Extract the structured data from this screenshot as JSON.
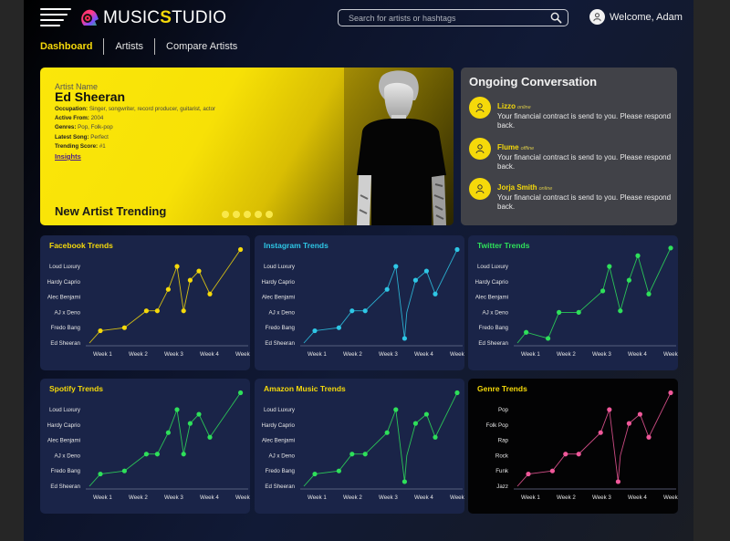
{
  "app": {
    "logo_part1": "MUSIC",
    "logo_part2": "S",
    "logo_part3": "TUDIO"
  },
  "header": {
    "search_placeholder": "Search for artists or hashtags",
    "welcome": "Welcome, Adam"
  },
  "nav": {
    "items": [
      {
        "label": "Dashboard",
        "active": true
      },
      {
        "label": "Artists",
        "active": false
      },
      {
        "label": "Compare Artists",
        "active": false
      }
    ]
  },
  "hero": {
    "label": "Artist Name",
    "name": "Ed Sheeran",
    "occupation_label": "Occupation:",
    "occupation": "Singer, songwriter, record producer, guitarist, actor",
    "active_label": "Active From:",
    "active": "2004",
    "genres_label": "Genres:",
    "genres": "Pop, Folk-pop",
    "song_label": "Latest Song:",
    "song": "Perfect",
    "score_label": "Trending Score:",
    "score": "#1",
    "insights": "Insights",
    "trend_title": "New Artist Trending",
    "carousel_dots": 5
  },
  "conversation": {
    "title": "Ongoing Conversation",
    "messages": [
      {
        "name": "Lizzo",
        "status": "online",
        "text": "Your financial contract is send to you. Please respond back."
      },
      {
        "name": "Flume",
        "status": "offline",
        "text": "Your financial contract is send to you. Please respond back."
      },
      {
        "name": "Jorja Smith",
        "status": "online",
        "text": "Your financial contract is send to you. Please respond back."
      }
    ]
  },
  "colors": {
    "accent_yellow": "#f5d90a",
    "facebook": "#f5d90a",
    "instagram": "#2ec7e6",
    "twitter": "#2ee05a",
    "spotify": "#2ee05a",
    "amazon": "#2ee05a",
    "genre": "#f0589a"
  },
  "chart_data": [
    {
      "type": "line",
      "title": "Facebook Trends",
      "categories": [
        "Week 1",
        "Week 2",
        "Week 3",
        "Week 4",
        "Week 5"
      ],
      "y_tick_labels": [
        "Ed Sheeran",
        "Fredo Bang",
        "AJ x Deno",
        "Alec Benjami",
        "Hardy Caprio",
        "Loud Luxury"
      ],
      "x": [
        0.0,
        0.5,
        1.6,
        2.6,
        3.1,
        3.6,
        4.0,
        4.3,
        4.6,
        5.0,
        5.5,
        6.9
      ],
      "values": [
        0.0,
        0.8,
        1.0,
        2.1,
        2.1,
        3.5,
        5.0,
        2.1,
        4.1,
        4.7,
        3.2,
        6.1
      ],
      "color": "#f5d90a",
      "background": "#1a2448"
    },
    {
      "type": "line",
      "title": "Instagram Trends",
      "categories": [
        "Week 1",
        "Week 2",
        "Week 3",
        "Week 4",
        "Week 5"
      ],
      "y_tick_labels": [
        "Ed Sheeran",
        "Fredo Bang",
        "AJ x Deno",
        "Alec Benjami",
        "Hardy Caprio",
        "Loud Luxury"
      ],
      "x": [
        0.0,
        0.5,
        1.6,
        2.2,
        2.8,
        3.8,
        4.2,
        4.6,
        4.7,
        5.1,
        5.6,
        6.0,
        7.0
      ],
      "values": [
        0.0,
        0.8,
        1.0,
        2.1,
        2.1,
        3.5,
        5.0,
        0.3,
        2.0,
        4.1,
        4.7,
        3.2,
        6.1
      ],
      "color": "#2ec7e6",
      "background": "#1a2448"
    },
    {
      "type": "line",
      "title": "Twitter Trends",
      "categories": [
        "Week 1",
        "Week 2",
        "Week 3",
        "Week 4",
        "Week 5"
      ],
      "y_tick_labels": [
        "Ed Sheeran",
        "Fredo Bang",
        "AJ x Deno",
        "Alec Benjami",
        "Hardy Caprio",
        "Loud Luxury"
      ],
      "x": [
        0.0,
        0.4,
        1.4,
        1.9,
        2.8,
        3.9,
        4.2,
        4.7,
        5.1,
        5.5,
        6.0,
        7.0
      ],
      "values": [
        0.0,
        0.7,
        0.3,
        2.0,
        2.0,
        3.4,
        5.0,
        2.1,
        4.1,
        5.7,
        3.2,
        6.2
      ],
      "color": "#2ee05a",
      "background": "#1a2448"
    },
    {
      "type": "line",
      "title": "Spotify Trends",
      "categories": [
        "Week 1",
        "Week 2",
        "Week 3",
        "Week 4",
        "Week 5"
      ],
      "y_tick_labels": [
        "Ed Sheeran",
        "Fredo Bang",
        "AJ x Deno",
        "Alec Benjami",
        "Hardy Caprio",
        "Loud Luxury"
      ],
      "x": [
        0.0,
        0.5,
        1.6,
        2.6,
        3.1,
        3.6,
        4.0,
        4.3,
        4.6,
        5.0,
        5.5,
        6.9
      ],
      "values": [
        0.0,
        0.8,
        1.0,
        2.1,
        2.1,
        3.5,
        5.0,
        2.1,
        4.1,
        4.7,
        3.2,
        6.1
      ],
      "color": "#2ee05a",
      "background": "#1a2448"
    },
    {
      "type": "line",
      "title": "Amazon Music Trends",
      "categories": [
        "Week 1",
        "Week 2",
        "Week 3",
        "Week 4",
        "Week 5"
      ],
      "y_tick_labels": [
        "Ed Sheeran",
        "Fredo Bang",
        "AJ x Deno",
        "Alec Benjami",
        "Hardy Caprio",
        "Loud Luxury"
      ],
      "x": [
        0.0,
        0.5,
        1.6,
        2.2,
        2.8,
        3.8,
        4.2,
        4.6,
        4.7,
        5.1,
        5.6,
        6.0,
        7.0
      ],
      "values": [
        0.0,
        0.8,
        1.0,
        2.1,
        2.1,
        3.5,
        5.0,
        0.3,
        2.0,
        4.1,
        4.7,
        3.2,
        6.1
      ],
      "color": "#2ee05a",
      "background": "#1a2448"
    },
    {
      "type": "line",
      "title": "Genre Trends",
      "categories": [
        "Week 1",
        "Week 2",
        "Week 3",
        "Week 4",
        "Week 5"
      ],
      "y_tick_labels": [
        "Jazz",
        "Funk",
        "Rock",
        "Rap",
        "Folk Pop",
        "Pop"
      ],
      "x": [
        0.0,
        0.5,
        1.6,
        2.2,
        2.8,
        3.8,
        4.2,
        4.6,
        4.7,
        5.1,
        5.6,
        6.0,
        7.0
      ],
      "values": [
        0.0,
        0.8,
        1.0,
        2.1,
        2.1,
        3.5,
        5.0,
        0.3,
        2.0,
        4.1,
        4.7,
        3.2,
        6.1
      ],
      "color": "#f0589a",
      "background": "#030304"
    }
  ]
}
